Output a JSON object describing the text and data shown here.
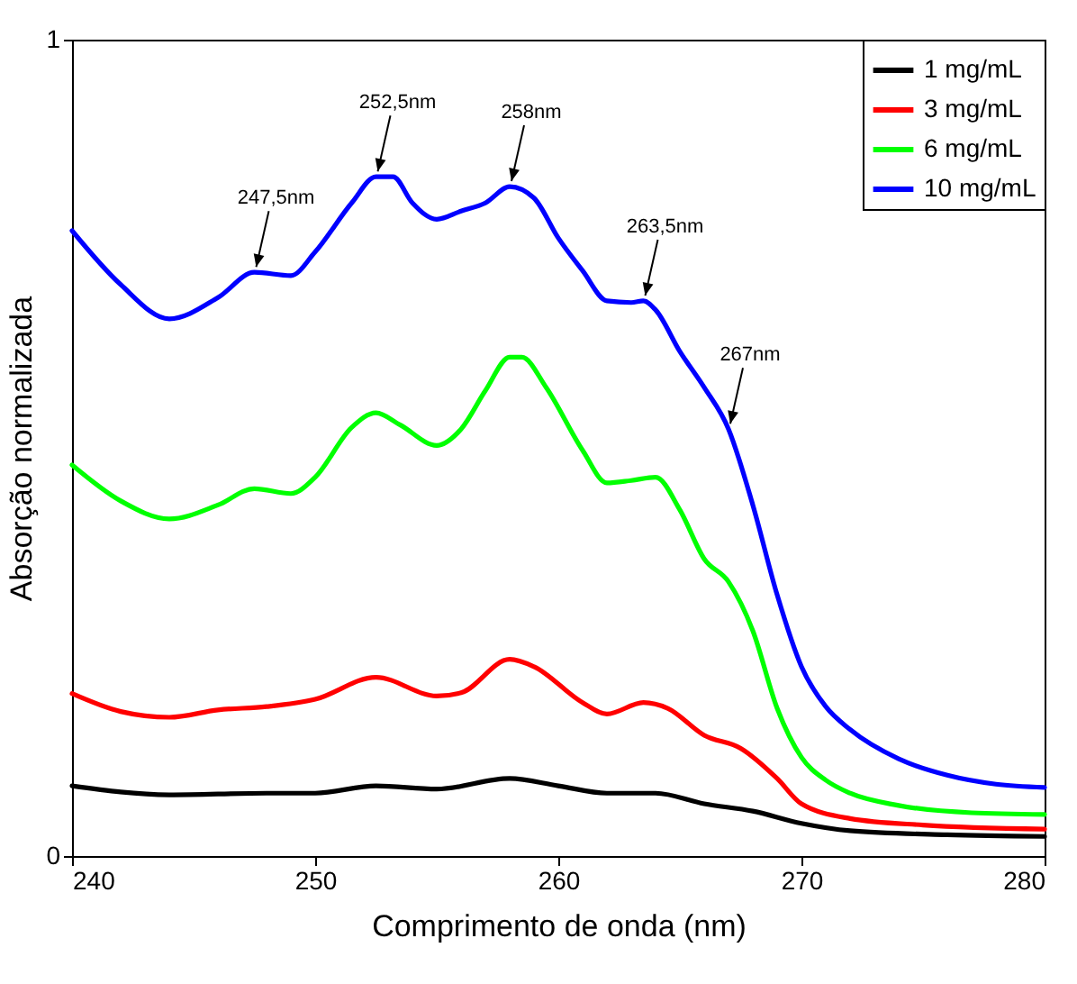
{
  "chart_data": {
    "type": "line",
    "xlabel": "Comprimento de onda (nm)",
    "ylabel": "Absorção normalizada",
    "xlim": [
      240,
      280
    ],
    "xticks": [
      240,
      250,
      260,
      270,
      280
    ],
    "ylim": [
      0,
      1
    ],
    "yticks": [
      0,
      1
    ],
    "legend": "top right",
    "line_style": "solid",
    "series": [
      {
        "name": "1 mg/mL",
        "color": "#000000",
        "x": [
          240,
          244,
          248,
          250,
          252.5,
          255,
          258,
          260,
          262,
          264,
          266,
          268,
          270,
          272,
          276,
          280
        ],
        "values": [
          0.086,
          0.075,
          0.077,
          0.077,
          0.086,
          0.082,
          0.095,
          0.086,
          0.077,
          0.077,
          0.064,
          0.055,
          0.04,
          0.031,
          0.026,
          0.024
        ]
      },
      {
        "name": "3 mg/mL",
        "color": "#ff0000",
        "x": [
          240,
          242,
          244,
          246,
          248,
          250,
          252.5,
          255,
          256,
          258,
          259,
          261,
          262,
          263.5,
          264.5,
          266,
          267.5,
          269,
          270,
          272,
          275,
          280
        ],
        "values": [
          0.199,
          0.177,
          0.17,
          0.179,
          0.183,
          0.192,
          0.219,
          0.196,
          0.2,
          0.241,
          0.232,
          0.188,
          0.174,
          0.188,
          0.181,
          0.148,
          0.132,
          0.095,
          0.064,
          0.046,
          0.038,
          0.033
        ]
      },
      {
        "name": "6 mg/mL",
        "color": "#00ff00",
        "x": [
          240,
          242,
          244,
          246,
          247.5,
          249,
          250,
          251.5,
          252.5,
          253.5,
          255,
          256,
          257,
          258,
          258.5,
          259.5,
          261,
          262,
          263,
          264,
          265,
          266,
          267,
          268,
          269,
          270,
          271,
          272,
          274,
          277,
          280
        ],
        "values": [
          0.479,
          0.435,
          0.413,
          0.43,
          0.45,
          0.444,
          0.464,
          0.525,
          0.543,
          0.528,
          0.503,
          0.523,
          0.57,
          0.611,
          0.611,
          0.574,
          0.497,
          0.457,
          0.46,
          0.464,
          0.424,
          0.364,
          0.336,
          0.276,
          0.181,
          0.121,
          0.093,
          0.077,
          0.062,
          0.053,
          0.051
        ]
      },
      {
        "name": "10 mg/mL",
        "color": "#0000ff",
        "x": [
          240,
          242,
          244,
          246,
          247.5,
          249,
          250,
          251.5,
          252.5,
          253.2,
          254,
          255,
          256,
          257,
          258,
          259,
          260,
          261,
          262,
          263,
          263.5,
          264,
          265,
          266,
          267,
          268,
          269,
          270,
          271,
          272,
          274,
          276,
          278,
          280
        ],
        "values": [
          0.766,
          0.7,
          0.658,
          0.684,
          0.715,
          0.711,
          0.74,
          0.8,
          0.832,
          0.832,
          0.8,
          0.78,
          0.79,
          0.8,
          0.82,
          0.806,
          0.757,
          0.717,
          0.68,
          0.678,
          0.68,
          0.669,
          0.618,
          0.574,
          0.523,
          0.43,
          0.32,
          0.232,
          0.183,
          0.155,
          0.119,
          0.099,
          0.088,
          0.084
        ]
      }
    ],
    "annotations": [
      {
        "text": "247,5nm",
        "x": 247.5,
        "y": 0.715
      },
      {
        "text": "252,5nm",
        "x": 252.5,
        "y": 0.832
      },
      {
        "text": "258nm",
        "x": 258,
        "y": 0.82
      },
      {
        "text": "263,5nm",
        "x": 263.5,
        "y": 0.68
      },
      {
        "text": "267nm",
        "x": 267,
        "y": 0.523
      }
    ]
  }
}
